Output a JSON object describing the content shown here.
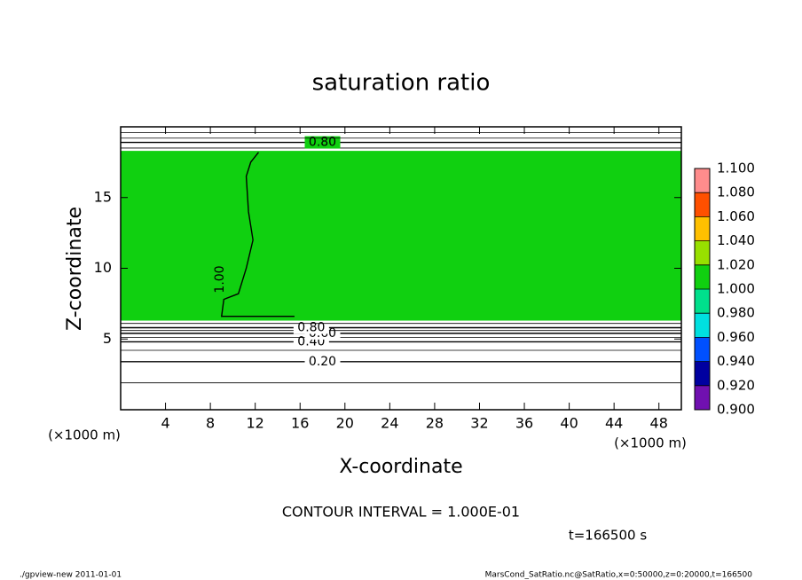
{
  "chart_data": {
    "type": "contour",
    "title": "saturation ratio",
    "xlabel": "X-coordinate",
    "ylabel": "Z-coordinate",
    "xunit": "(×1000 m)",
    "yunit": "(×1000 m)",
    "xlim": [
      0,
      50
    ],
    "ylim": [
      0,
      20
    ],
    "xticks": [
      4,
      8,
      12,
      16,
      20,
      24,
      28,
      32,
      36,
      40,
      44,
      48
    ],
    "yticks": [
      5,
      10,
      15
    ],
    "field": {
      "value": 1.0,
      "zlim": [
        6.3,
        18.3
      ]
    },
    "contours": [
      {
        "level": 0.1,
        "z": 1.9
      },
      {
        "level": 0.2,
        "z": 3.4,
        "label": "0.20"
      },
      {
        "level": 0.3,
        "z": 4.2
      },
      {
        "level": 0.4,
        "z": 4.8,
        "label": "0.40"
      },
      {
        "level": 0.5,
        "z": 5.1
      },
      {
        "level": 0.6,
        "z": 5.4,
        "label": "0.60"
      },
      {
        "level": 0.7,
        "z": 5.6
      },
      {
        "level": 0.8,
        "z": 5.8,
        "label": "0.80"
      },
      {
        "level": 0.9,
        "z": 6.1
      },
      {
        "level": 0.9,
        "z": 18.5
      },
      {
        "level": 0.8,
        "z": 18.9,
        "label": "0.80"
      },
      {
        "level": 0.6,
        "z": 19.2
      },
      {
        "level": 0.4,
        "z": 19.6
      }
    ],
    "contour_1": {
      "level": 1.0,
      "label": "1.00",
      "x": [
        15.5,
        9,
        9.2,
        10.5,
        11.2,
        11.8,
        11.4,
        11.2,
        11.6,
        12.3
      ],
      "z": [
        6.6,
        6.6,
        7.8,
        8.2,
        10,
        12,
        14,
        16.5,
        17.5,
        18.2
      ]
    },
    "colorbar": {
      "lim": [
        0.9,
        1.1
      ],
      "ticks": [
        {
          "value": 0.9,
          "label": "0.900"
        },
        {
          "value": 0.92,
          "label": "0.920"
        },
        {
          "value": 0.94,
          "label": "0.940"
        },
        {
          "value": 0.96,
          "label": "0.960"
        },
        {
          "value": 0.98,
          "label": "0.980"
        },
        {
          "value": 1.0,
          "label": "1.000"
        },
        {
          "value": 1.02,
          "label": "1.020"
        },
        {
          "value": 1.04,
          "label": "1.040"
        },
        {
          "value": 1.06,
          "label": "1.060"
        },
        {
          "value": 1.08,
          "label": "1.080"
        },
        {
          "value": 1.1,
          "label": "1.100"
        }
      ],
      "colors": [
        "#7010b0",
        "#0000a0",
        "#0050ff",
        "#00e0e0",
        "#00e08c",
        "#10d010",
        "#98e000",
        "#ffc000",
        "#ff5000",
        "#ff8c8c"
      ]
    },
    "contour_interval": "CONTOUR INTERVAL = 1.000E-01",
    "time": "t=166500 s",
    "footer_left": "./gpview-new   2011-01-01",
    "footer_right": "MarsCond_SatRatio.nc@SatRatio,x=0:50000,z=0:20000,t=166500"
  }
}
